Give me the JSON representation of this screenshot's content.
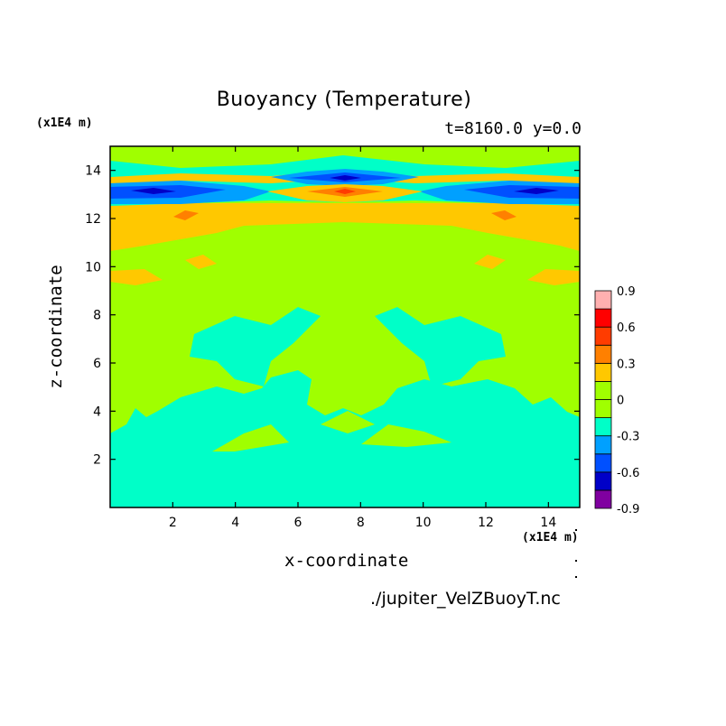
{
  "chart_data": {
    "type": "heatmap",
    "title": "Buoyancy (Temperature)",
    "subtitle": "t=8160.0 y=0.0",
    "xlabel": "x-coordinate",
    "ylabel": "z-coordinate",
    "x_unit": "(x1E4 m)",
    "y_unit": "(x1E4 m)",
    "xlim": [
      0,
      15
    ],
    "ylim": [
      0,
      15
    ],
    "xticks": [
      2,
      4,
      6,
      8,
      10,
      12,
      14
    ],
    "yticks": [
      2,
      4,
      6,
      8,
      10,
      12,
      14
    ],
    "colorbar": {
      "levels": [
        -0.9,
        -0.75,
        -0.6,
        -0.45,
        -0.3,
        -0.15,
        0,
        0.15,
        0.3,
        0.45,
        0.6,
        0.75,
        0.9
      ],
      "tick_labels": [
        "0.9",
        "0.6",
        "0.3",
        "0",
        "-0.3",
        "-0.6",
        "-0.9"
      ],
      "colors": [
        "#8000a0",
        "#0000c8",
        "#0050ff",
        "#00a0ff",
        "#00ffc8",
        "#a0ff00",
        "#ffc800",
        "#ff8000",
        "#ff3c00",
        "#ff0000",
        "#ffb0b0"
      ]
    },
    "field_regions": [
      {
        "value": -0.15,
        "region": "lower domain z 0-3, plus patches up to z 8"
      },
      {
        "value": 0.05,
        "region": "mid domain z 3-10"
      },
      {
        "value": 0.2,
        "region": "band z 10-12.5"
      },
      {
        "value": -0.7,
        "region": "band z ~13 near x 1.5, 7.5, 13.5"
      },
      {
        "value": 0.5,
        "region": "band z ~12.8 near x 7.5"
      },
      {
        "value": -0.15,
        "region": "top z 14-15"
      }
    ]
  },
  "footer": {
    "file": "./jupiter_VelZBuoyT.nc"
  }
}
